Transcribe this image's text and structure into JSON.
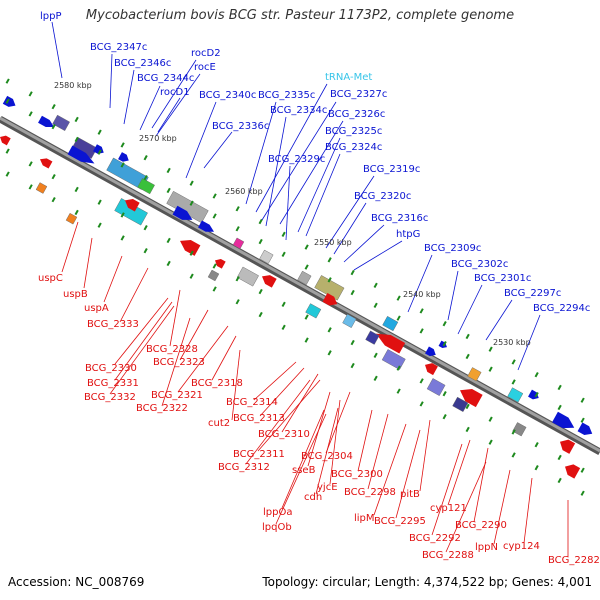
{
  "title": "Mycobacterium bovis BCG str. Pasteur 1173P2, complete genome",
  "footer": {
    "accession": "Accession: NC_008769",
    "summary": "Topology: circular; Length: 4,374,522 bp; Genes: 4,001"
  },
  "colors": {
    "forward": "#0a14d2",
    "reverse": "#e01010",
    "trna": "#35c4e8",
    "backbone": "#8a8a8a",
    "tick": "#1e8a1e"
  },
  "ticks": [
    "2580 kbp",
    "2570 kbp",
    "2560 kbp",
    "2550 kbp",
    "2540 kbp",
    "2530 kbp"
  ],
  "upper_labels": [
    "lppP",
    "BCG_2347c",
    "BCG_2346c",
    "rocD2",
    "rocE",
    "BCG_2344c",
    "rocD1",
    "BCG_2340c",
    "BCG_2335c",
    "tRNA-Met",
    "BCG_2327c",
    "BCG_2336c",
    "BCG_2334c",
    "BCG_2326c",
    "BCG_2325c",
    "BCG_2324c",
    "BCG_2329c",
    "BCG_2319c",
    "BCG_2320c",
    "BCG_2316c",
    "htpG",
    "BCG_2309c",
    "BCG_2302c",
    "BCG_2301c",
    "BCG_2297c",
    "BCG_2294c"
  ],
  "lower_labels": [
    "uspC",
    "uspB",
    "uspA",
    "BCG_2333",
    "BCG_2328",
    "BCG_2330",
    "BCG_2323",
    "BCG_2331",
    "BCG_2332",
    "BCG_2321",
    "BCG_2318",
    "BCG_2322",
    "BCG_2314",
    "BCG_2313",
    "cut2",
    "BCG_2310",
    "BCG_2311",
    "BCG_2304",
    "BCG_2312",
    "sseB",
    "BCG_2300",
    "yjcE",
    "cdh",
    "BCG_2298",
    "pitB",
    "lppOa",
    "lpqOb",
    "lipM",
    "BCG_2295",
    "cyp121",
    "BCG_2290",
    "BCG_2292",
    "BCG_2288",
    "lppN",
    "cyp124",
    "BCG_2282"
  ]
}
